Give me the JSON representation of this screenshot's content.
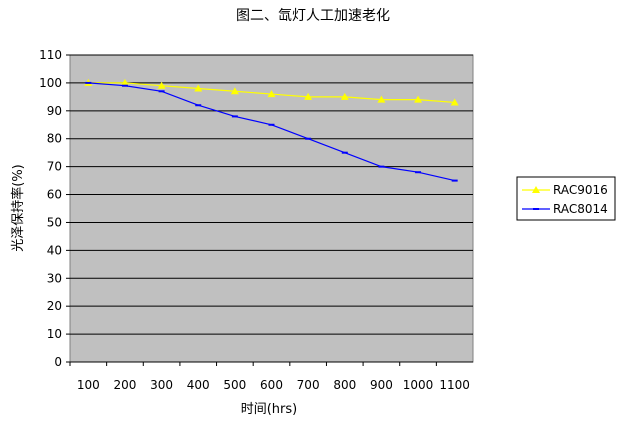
{
  "chart_data": {
    "type": "line",
    "title": "图二、氙灯人工加速老化",
    "xlabel": "时间(hrs)",
    "ylabel": "光泽保持率(%)",
    "categories": [
      "100",
      "200",
      "300",
      "400",
      "500",
      "600",
      "700",
      "800",
      "900",
      "1000",
      "1100"
    ],
    "ylim": [
      0,
      110
    ],
    "yticks": [
      0,
      10,
      20,
      30,
      40,
      50,
      60,
      70,
      80,
      90,
      100,
      110
    ],
    "grid": true,
    "legend": "right",
    "plot_background": "#c0c0c0",
    "series": [
      {
        "name": "RAC9016",
        "color": "#ffff00",
        "marker": "triangle",
        "values": [
          100,
          100,
          99,
          98,
          97,
          96,
          95,
          95,
          94,
          94,
          93
        ]
      },
      {
        "name": "RAC8014",
        "color": "#0000ff",
        "marker": "dash",
        "values": [
          100,
          99,
          97,
          92,
          88,
          85,
          80,
          75,
          70,
          68,
          65
        ]
      }
    ]
  }
}
